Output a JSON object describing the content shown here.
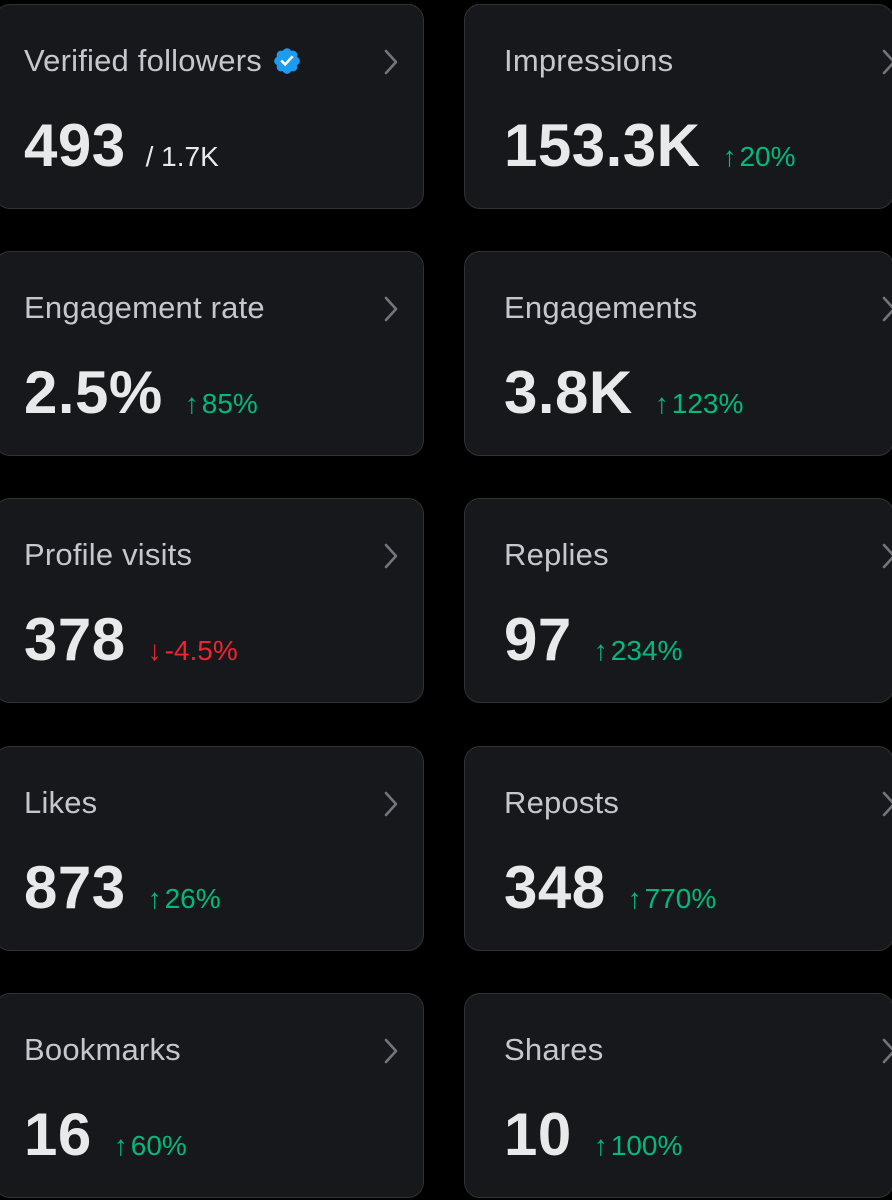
{
  "colors": {
    "background": "#000000",
    "card": "#16181c",
    "card_border": "#2f3336",
    "positive": "#00ba7c",
    "negative": "#f4212e",
    "verified": "#1d9bf0"
  },
  "cards": [
    {
      "label": "Verified followers",
      "value": "493",
      "total": "/ 1.7K",
      "icon": "verified-badge-icon"
    },
    {
      "label": "Impressions",
      "value": "153.3K",
      "arrow": "↑",
      "change": "20%",
      "direction": "up"
    },
    {
      "label": "Engagement rate",
      "value": "2.5%",
      "arrow": "↑",
      "change": "85%",
      "direction": "up"
    },
    {
      "label": "Engagements",
      "value": "3.8K",
      "arrow": "↑",
      "change": "123%",
      "direction": "up"
    },
    {
      "label": "Profile visits",
      "value": "378",
      "arrow": "↓",
      "change": "-4.5%",
      "direction": "down"
    },
    {
      "label": "Replies",
      "value": "97",
      "arrow": "↑",
      "change": "234%",
      "direction": "up"
    },
    {
      "label": "Likes",
      "value": "873",
      "arrow": "↑",
      "change": "26%",
      "direction": "up"
    },
    {
      "label": "Reposts",
      "value": "348",
      "arrow": "↑",
      "change": "770%",
      "direction": "up"
    },
    {
      "label": "Bookmarks",
      "value": "16",
      "arrow": "↑",
      "change": "60%",
      "direction": "up"
    },
    {
      "label": "Shares",
      "value": "10",
      "arrow": "↑",
      "change": "100%",
      "direction": "up"
    }
  ]
}
